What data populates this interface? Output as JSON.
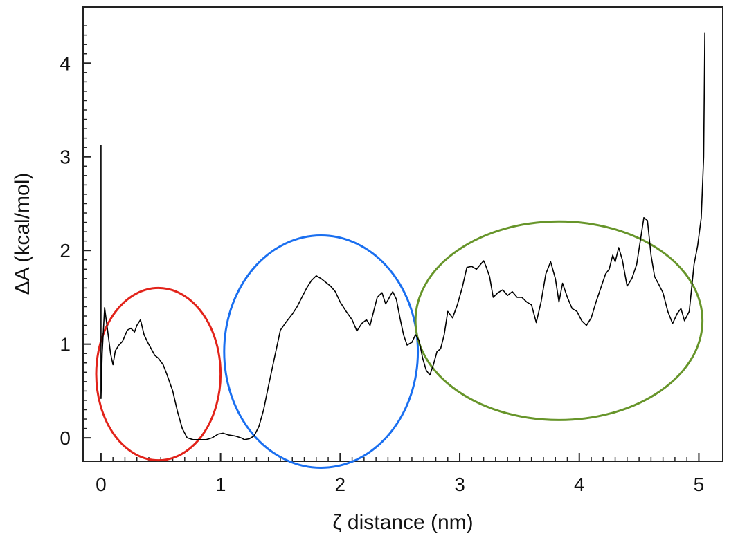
{
  "chart_data": {
    "type": "line",
    "title": "",
    "xlabel": "ζ  distance (nm)",
    "ylabel": "ΔA  (kcal/mol)",
    "xlim": [
      -0.15,
      5.2
    ],
    "ylim": [
      -0.25,
      4.6
    ],
    "xticks": [
      0,
      1,
      2,
      3,
      4,
      5
    ],
    "yticks": [
      0,
      1,
      2,
      3,
      4
    ],
    "grid": false,
    "legend": "none",
    "series": [
      {
        "color": "#000000",
        "x": [
          0.0,
          0.0,
          0.01,
          0.03,
          0.05,
          0.08,
          0.1,
          0.12,
          0.15,
          0.18,
          0.22,
          0.25,
          0.28,
          0.3,
          0.33,
          0.36,
          0.39,
          0.42,
          0.45,
          0.48,
          0.52,
          0.55,
          0.6,
          0.64,
          0.68,
          0.72,
          0.77,
          0.82,
          0.88,
          0.93,
          0.98,
          1.02,
          1.07,
          1.12,
          1.17,
          1.2,
          1.24,
          1.28,
          1.32,
          1.36,
          1.4,
          1.45,
          1.5,
          1.55,
          1.6,
          1.64,
          1.68,
          1.72,
          1.76,
          1.8,
          1.84,
          1.88,
          1.92,
          1.96,
          2.0,
          2.05,
          2.1,
          2.14,
          2.18,
          2.22,
          2.25,
          2.28,
          2.31,
          2.35,
          2.38,
          2.4,
          2.42,
          2.44,
          2.47,
          2.5,
          2.53,
          2.56,
          2.6,
          2.63,
          2.66,
          2.69,
          2.72,
          2.75,
          2.78,
          2.81,
          2.84,
          2.87,
          2.9,
          2.94,
          2.98,
          3.02,
          3.06,
          3.1,
          3.14,
          3.18,
          3.2,
          3.22,
          3.25,
          3.28,
          3.32,
          3.36,
          3.4,
          3.44,
          3.48,
          3.52,
          3.56,
          3.6,
          3.64,
          3.68,
          3.72,
          3.76,
          3.8,
          3.83,
          3.86,
          3.9,
          3.94,
          3.98,
          4.02,
          4.06,
          4.1,
          4.14,
          4.18,
          4.22,
          4.25,
          4.28,
          4.3,
          4.33,
          4.36,
          4.4,
          4.44,
          4.48,
          4.51,
          4.54,
          4.57,
          4.6,
          4.63,
          4.66,
          4.7,
          4.74,
          4.78,
          4.82,
          4.85,
          4.88,
          4.92,
          4.96,
          4.99,
          5.02,
          5.04,
          5.05
        ],
        "y": [
          3.13,
          0.42,
          0.9,
          1.39,
          1.2,
          0.9,
          0.78,
          0.93,
          0.99,
          1.03,
          1.15,
          1.17,
          1.13,
          1.2,
          1.26,
          1.1,
          1.02,
          0.95,
          0.88,
          0.85,
          0.78,
          0.68,
          0.5,
          0.28,
          0.1,
          0.0,
          -0.02,
          -0.02,
          -0.02,
          0.0,
          0.04,
          0.05,
          0.03,
          0.02,
          0.0,
          -0.02,
          -0.01,
          0.02,
          0.12,
          0.3,
          0.55,
          0.85,
          1.15,
          1.24,
          1.32,
          1.4,
          1.5,
          1.6,
          1.68,
          1.73,
          1.7,
          1.66,
          1.62,
          1.56,
          1.45,
          1.35,
          1.26,
          1.14,
          1.22,
          1.26,
          1.2,
          1.35,
          1.5,
          1.55,
          1.43,
          1.47,
          1.52,
          1.56,
          1.48,
          1.28,
          1.1,
          0.99,
          1.02,
          1.1,
          1.04,
          0.85,
          0.72,
          0.67,
          0.78,
          0.92,
          0.95,
          1.1,
          1.35,
          1.28,
          1.42,
          1.6,
          1.82,
          1.83,
          1.8,
          1.86,
          1.89,
          1.83,
          1.72,
          1.5,
          1.55,
          1.58,
          1.52,
          1.56,
          1.5,
          1.5,
          1.45,
          1.42,
          1.23,
          1.45,
          1.75,
          1.88,
          1.7,
          1.45,
          1.65,
          1.5,
          1.38,
          1.35,
          1.25,
          1.2,
          1.28,
          1.45,
          1.6,
          1.75,
          1.8,
          1.95,
          1.88,
          2.03,
          1.9,
          1.62,
          1.7,
          1.85,
          2.1,
          2.35,
          2.32,
          1.95,
          1.72,
          1.65,
          1.55,
          1.35,
          1.22,
          1.33,
          1.38,
          1.25,
          1.35,
          1.85,
          2.05,
          2.35,
          3.0,
          4.33
        ]
      }
    ],
    "annotations": [
      {
        "shape": "ellipse",
        "color": "#e2231a",
        "cx": 0.48,
        "cy": 0.68,
        "rx": 0.52,
        "ry": 0.92
      },
      {
        "shape": "ellipse",
        "color": "#1a6ff0",
        "cx": 1.84,
        "cy": 0.92,
        "rx": 0.81,
        "ry": 1.24
      },
      {
        "shape": "ellipse",
        "color": "#67952a",
        "cx": 3.83,
        "cy": 1.25,
        "rx": 1.2,
        "ry": 1.06
      }
    ]
  }
}
